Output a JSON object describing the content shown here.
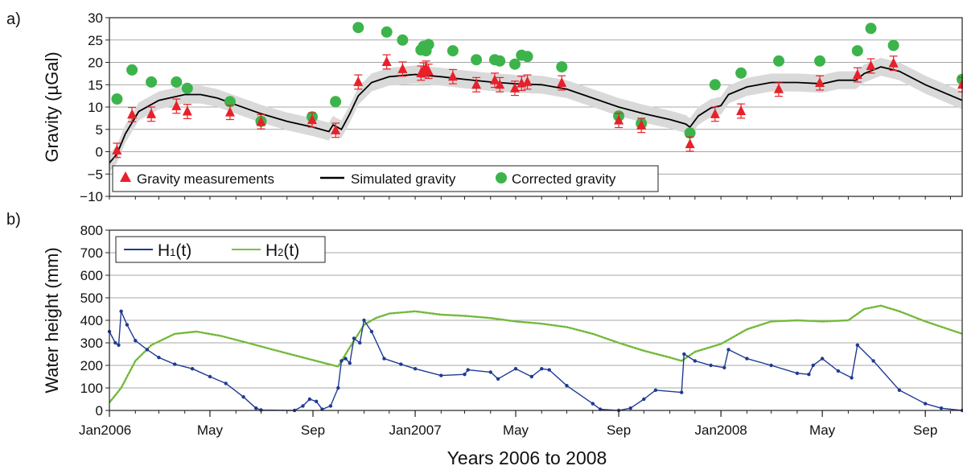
{
  "figure": {
    "xlabel": "Years 2006 to 2008",
    "month_ticks": [
      {
        "label": "Jan2006",
        "date": "2006-01-01"
      },
      {
        "label": "May",
        "date": "2006-05-01"
      },
      {
        "label": "Sep",
        "date": "2006-09-01"
      },
      {
        "label": "Jan2007",
        "date": "2007-01-01"
      },
      {
        "label": "May",
        "date": "2007-05-01"
      },
      {
        "label": "Sep",
        "date": "2007-09-01"
      },
      {
        "label": "Jan2008",
        "date": "2008-01-01"
      },
      {
        "label": "May",
        "date": "2008-05-01"
      },
      {
        "label": "Sep",
        "date": "2008-09-01"
      }
    ],
    "colors": {
      "measurements": "#e8202a",
      "simulated": "#000000",
      "uncertainty_band": "#d9d9d9",
      "corrected": "#3cb44b",
      "h1": "#1f3a93",
      "h2": "#7ac142"
    }
  },
  "chart_data": [
    {
      "type": "scatter",
      "panel_label": "a)",
      "ylabel": "Gravity (µGal)",
      "ylim": [
        -10,
        30
      ],
      "yticks": [
        -10,
        -5,
        0,
        5,
        10,
        15,
        20,
        25,
        30
      ],
      "xlim": [
        "2006-01-01",
        "2008-10-15"
      ],
      "grid": "horizontal",
      "legend_position": "bottom-left",
      "series": [
        {
          "name": "Gravity measurements",
          "marker": "triangle",
          "error_bar": 1.6,
          "points": [
            [
              "2006-01-10",
              0.3
            ],
            [
              "2006-01-28",
              8.3
            ],
            [
              "2006-02-20",
              8.4
            ],
            [
              "2006-03-22",
              10.2
            ],
            [
              "2006-04-04",
              9.0
            ],
            [
              "2006-05-25",
              8.8
            ],
            [
              "2006-07-01",
              6.7
            ],
            [
              "2006-08-31",
              7.1
            ],
            [
              "2006-09-28",
              4.8
            ],
            [
              "2006-10-25",
              15.6
            ],
            [
              "2006-11-28",
              20.1
            ],
            [
              "2006-12-17",
              18.5
            ],
            [
              "2007-01-08",
              17.6
            ],
            [
              "2007-01-11",
              18.3
            ],
            [
              "2007-01-14",
              18.7
            ],
            [
              "2007-01-17",
              18.0
            ],
            [
              "2007-02-15",
              16.8
            ],
            [
              "2007-03-15",
              15.0
            ],
            [
              "2007-04-06",
              16.0
            ],
            [
              "2007-04-12",
              15.0
            ],
            [
              "2007-04-30",
              14.2
            ],
            [
              "2007-05-08",
              15.3
            ],
            [
              "2007-05-15",
              15.6
            ],
            [
              "2007-06-25",
              15.4
            ],
            [
              "2007-09-01",
              7.0
            ],
            [
              "2007-09-28",
              5.9
            ],
            [
              "2007-11-25",
              1.7
            ],
            [
              "2007-12-25",
              8.4
            ],
            [
              "2008-01-25",
              9.1
            ],
            [
              "2008-03-10",
              14.0
            ],
            [
              "2008-04-28",
              15.4
            ],
            [
              "2008-06-12",
              17.2
            ],
            [
              "2008-06-28",
              19.2
            ],
            [
              "2008-07-25",
              19.8
            ],
            [
              "2008-10-15",
              15.0
            ]
          ]
        },
        {
          "name": "Simulated gravity",
          "marker": "line",
          "band_halfwidth": 2,
          "points": [
            [
              "2006-01-01",
              -2.5
            ],
            [
              "2006-01-10",
              -0.5
            ],
            [
              "2006-01-20",
              4
            ],
            [
              "2006-02-05",
              9
            ],
            [
              "2006-03-01",
              11.5
            ],
            [
              "2006-04-01",
              12.8
            ],
            [
              "2006-04-20",
              12.8
            ],
            [
              "2006-05-10",
              12
            ],
            [
              "2006-06-01",
              10.5
            ],
            [
              "2006-07-01",
              8.5
            ],
            [
              "2006-08-01",
              6.8
            ],
            [
              "2006-09-01",
              5.5
            ],
            [
              "2006-09-20",
              4.5
            ],
            [
              "2006-09-25",
              6.0
            ],
            [
              "2006-10-05",
              5.0
            ],
            [
              "2006-10-15",
              8.5
            ],
            [
              "2006-10-25",
              12.5
            ],
            [
              "2006-11-10",
              15.5
            ],
            [
              "2006-12-01",
              16.8
            ],
            [
              "2007-01-01",
              17.3
            ],
            [
              "2007-02-01",
              16.8
            ],
            [
              "2007-03-01",
              16.2
            ],
            [
              "2007-04-01",
              15.6
            ],
            [
              "2007-05-01",
              15.2
            ],
            [
              "2007-06-01",
              15.0
            ],
            [
              "2007-07-01",
              14.0
            ],
            [
              "2007-08-01",
              12.0
            ],
            [
              "2007-09-01",
              10.0
            ],
            [
              "2007-10-01",
              8.5
            ],
            [
              "2007-11-01",
              7.2
            ],
            [
              "2007-11-20",
              6.2
            ],
            [
              "2007-11-25",
              5.5
            ],
            [
              "2007-12-05",
              8.0
            ],
            [
              "2007-12-20",
              9.8
            ],
            [
              "2008-01-01",
              10.3
            ],
            [
              "2008-01-10",
              12.8
            ],
            [
              "2008-02-01",
              14.5
            ],
            [
              "2008-03-01",
              15.5
            ],
            [
              "2008-04-01",
              15.5
            ],
            [
              "2008-05-01",
              15.2
            ],
            [
              "2008-05-20",
              16.0
            ],
            [
              "2008-06-10",
              16.0
            ],
            [
              "2008-06-20",
              17.5
            ],
            [
              "2008-07-10",
              19.0
            ],
            [
              "2008-08-01",
              18.0
            ],
            [
              "2008-09-01",
              15.0
            ],
            [
              "2008-10-15",
              11.5
            ]
          ]
        },
        {
          "name": "Corrected gravity",
          "marker": "circle",
          "points": [
            [
              "2006-01-10",
              11.8
            ],
            [
              "2006-01-28",
              18.3
            ],
            [
              "2006-02-20",
              15.6
            ],
            [
              "2006-03-22",
              15.6
            ],
            [
              "2006-04-04",
              14.2
            ],
            [
              "2006-05-25",
              11.2
            ],
            [
              "2006-07-01",
              6.8
            ],
            [
              "2006-08-31",
              7.8
            ],
            [
              "2006-09-28",
              11.2
            ],
            [
              "2006-10-25",
              27.8
            ],
            [
              "2006-11-28",
              26.8
            ],
            [
              "2006-12-17",
              25.0
            ],
            [
              "2007-01-08",
              22.8
            ],
            [
              "2007-01-11",
              23.6
            ],
            [
              "2007-01-14",
              22.6
            ],
            [
              "2007-01-17",
              24.0
            ],
            [
              "2007-02-15",
              22.6
            ],
            [
              "2007-03-15",
              20.6
            ],
            [
              "2007-04-06",
              20.6
            ],
            [
              "2007-04-12",
              20.3
            ],
            [
              "2007-04-30",
              19.6
            ],
            [
              "2007-05-08",
              21.6
            ],
            [
              "2007-05-15",
              21.3
            ],
            [
              "2007-06-25",
              19.0
            ],
            [
              "2007-09-01",
              8.0
            ],
            [
              "2007-09-28",
              6.3
            ],
            [
              "2007-11-25",
              4.2
            ],
            [
              "2007-12-25",
              15.0
            ],
            [
              "2008-01-25",
              17.6
            ],
            [
              "2008-03-10",
              20.3
            ],
            [
              "2008-04-28",
              20.3
            ],
            [
              "2008-06-12",
              22.6
            ],
            [
              "2008-06-28",
              27.6
            ],
            [
              "2008-07-25",
              23.8
            ],
            [
              "2008-10-15",
              16.2
            ]
          ]
        }
      ]
    },
    {
      "type": "line",
      "panel_label": "b)",
      "ylabel": "Water height (mm)",
      "ylim": [
        0,
        800
      ],
      "yticks": [
        0,
        100,
        200,
        300,
        400,
        500,
        600,
        700,
        800
      ],
      "xlim": [
        "2006-01-01",
        "2008-10-15"
      ],
      "grid": "horizontal",
      "legend_position": "top-left",
      "series": [
        {
          "name": "H",
          "subscript": "1",
          "suffix": "(t)",
          "style": "dotted-line",
          "points": [
            [
              "2006-01-01",
              350
            ],
            [
              "2006-01-08",
              300
            ],
            [
              "2006-01-12",
              290
            ],
            [
              "2006-01-15",
              440
            ],
            [
              "2006-01-22",
              380
            ],
            [
              "2006-02-01",
              310
            ],
            [
              "2006-02-15",
              270
            ],
            [
              "2006-03-01",
              235
            ],
            [
              "2006-03-20",
              205
            ],
            [
              "2006-04-10",
              185
            ],
            [
              "2006-05-01",
              150
            ],
            [
              "2006-05-20",
              120
            ],
            [
              "2006-06-10",
              60
            ],
            [
              "2006-06-25",
              10
            ],
            [
              "2006-07-01",
              2
            ],
            [
              "2006-08-10",
              0
            ],
            [
              "2006-08-20",
              20
            ],
            [
              "2006-08-28",
              50
            ],
            [
              "2006-09-05",
              40
            ],
            [
              "2006-09-12",
              5
            ],
            [
              "2006-09-22",
              20
            ],
            [
              "2006-10-01",
              100
            ],
            [
              "2006-10-05",
              220
            ],
            [
              "2006-10-10",
              230
            ],
            [
              "2006-10-15",
              210
            ],
            [
              "2006-10-20",
              320
            ],
            [
              "2006-10-27",
              300
            ],
            [
              "2006-11-01",
              400
            ],
            [
              "2006-11-10",
              350
            ],
            [
              "2006-11-25",
              230
            ],
            [
              "2006-12-15",
              205
            ],
            [
              "2007-01-01",
              185
            ],
            [
              "2007-02-01",
              155
            ],
            [
              "2007-03-01",
              160
            ],
            [
              "2007-03-05",
              180
            ],
            [
              "2007-04-01",
              170
            ],
            [
              "2007-04-10",
              140
            ],
            [
              "2007-05-01",
              185
            ],
            [
              "2007-05-20",
              150
            ],
            [
              "2007-06-01",
              185
            ],
            [
              "2007-06-10",
              180
            ],
            [
              "2007-07-01",
              110
            ],
            [
              "2007-08-01",
              30
            ],
            [
              "2007-08-10",
              5
            ],
            [
              "2007-09-01",
              0
            ],
            [
              "2007-09-15",
              10
            ],
            [
              "2007-10-01",
              50
            ],
            [
              "2007-10-15",
              90
            ],
            [
              "2007-11-15",
              80
            ],
            [
              "2007-11-18",
              250
            ],
            [
              "2007-12-01",
              220
            ],
            [
              "2007-12-20",
              200
            ],
            [
              "2008-01-05",
              190
            ],
            [
              "2008-01-10",
              270
            ],
            [
              "2008-02-01",
              230
            ],
            [
              "2008-03-01",
              200
            ],
            [
              "2008-04-01",
              165
            ],
            [
              "2008-04-15",
              160
            ],
            [
              "2008-04-20",
              200
            ],
            [
              "2008-05-01",
              230
            ],
            [
              "2008-05-20",
              175
            ],
            [
              "2008-06-05",
              145
            ],
            [
              "2008-06-12",
              290
            ],
            [
              "2008-07-01",
              220
            ],
            [
              "2008-08-01",
              90
            ],
            [
              "2008-09-01",
              30
            ],
            [
              "2008-09-20",
              10
            ],
            [
              "2008-10-15",
              0
            ]
          ]
        },
        {
          "name": "H",
          "subscript": "2",
          "suffix": "(t)",
          "style": "line",
          "points": [
            [
              "2006-01-01",
              35
            ],
            [
              "2006-01-15",
              100
            ],
            [
              "2006-02-01",
              220
            ],
            [
              "2006-02-20",
              290
            ],
            [
              "2006-03-20",
              340
            ],
            [
              "2006-04-15",
              350
            ],
            [
              "2006-05-15",
              330
            ],
            [
              "2006-06-15",
              300
            ],
            [
              "2006-07-15",
              270
            ],
            [
              "2006-08-15",
              240
            ],
            [
              "2006-09-15",
              210
            ],
            [
              "2006-10-01",
              195
            ],
            [
              "2006-10-15",
              280
            ],
            [
              "2006-11-01",
              380
            ],
            [
              "2006-11-15",
              410
            ],
            [
              "2006-12-01",
              430
            ],
            [
              "2007-01-01",
              440
            ],
            [
              "2007-02-01",
              425
            ],
            [
              "2007-03-01",
              420
            ],
            [
              "2007-04-01",
              410
            ],
            [
              "2007-05-01",
              395
            ],
            [
              "2007-06-01",
              385
            ],
            [
              "2007-07-01",
              370
            ],
            [
              "2007-08-01",
              340
            ],
            [
              "2007-09-01",
              300
            ],
            [
              "2007-10-01",
              265
            ],
            [
              "2007-11-01",
              235
            ],
            [
              "2007-11-15",
              220
            ],
            [
              "2007-12-01",
              260
            ],
            [
              "2008-01-01",
              295
            ],
            [
              "2008-02-01",
              360
            ],
            [
              "2008-03-01",
              395
            ],
            [
              "2008-04-01",
              400
            ],
            [
              "2008-05-01",
              395
            ],
            [
              "2008-06-01",
              400
            ],
            [
              "2008-06-20",
              450
            ],
            [
              "2008-07-10",
              465
            ],
            [
              "2008-08-01",
              440
            ],
            [
              "2008-09-01",
              395
            ],
            [
              "2008-10-15",
              340
            ]
          ]
        }
      ]
    }
  ]
}
